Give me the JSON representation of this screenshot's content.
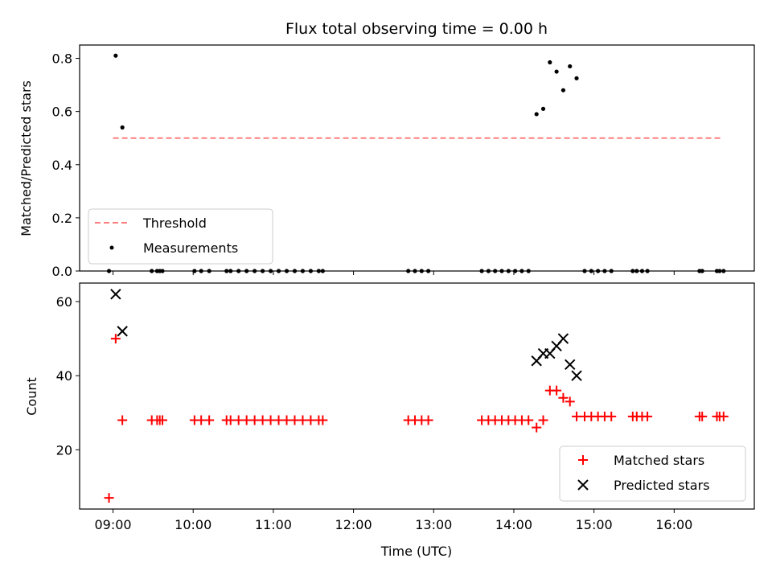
{
  "chart_data": [
    {
      "type": "scatter",
      "title": "Flux total observing time = 0.00 h",
      "xlabel": "",
      "ylabel": "Matched/Predicted stars",
      "xlim": [
        "08:35",
        "17:00"
      ],
      "ylim": [
        0,
        0.85
      ],
      "yticks": [
        "0.0",
        "0.2",
        "0.4",
        "0.6",
        "0.8"
      ],
      "legend_position": "lower-left",
      "threshold": {
        "name": "Threshold",
        "color": "#ff7f7f",
        "value": 0.5,
        "x_range": [
          "09:00",
          "16:35"
        ]
      },
      "series": [
        {
          "name": "Measurements",
          "color": "#000000",
          "points": [
            [
              "08:57",
              0
            ],
            [
              "09:02",
              0.81
            ],
            [
              "09:07",
              0.54
            ],
            [
              "09:29",
              0
            ],
            [
              "09:33",
              0
            ],
            [
              "09:35",
              0
            ],
            [
              "09:37",
              0
            ],
            [
              "10:01",
              0
            ],
            [
              "10:06",
              0
            ],
            [
              "10:12",
              0
            ],
            [
              "10:25",
              0
            ],
            [
              "10:28",
              0
            ],
            [
              "10:34",
              0
            ],
            [
              "10:40",
              0
            ],
            [
              "10:46",
              0
            ],
            [
              "10:52",
              0
            ],
            [
              "10:58",
              0
            ],
            [
              "11:04",
              0
            ],
            [
              "11:10",
              0
            ],
            [
              "11:16",
              0
            ],
            [
              "11:22",
              0
            ],
            [
              "11:28",
              0
            ],
            [
              "11:34",
              0
            ],
            [
              "11:37",
              0
            ],
            [
              "12:41",
              0
            ],
            [
              "12:46",
              0
            ],
            [
              "12:51",
              0
            ],
            [
              "12:56",
              0
            ],
            [
              "13:36",
              0
            ],
            [
              "13:41",
              0
            ],
            [
              "13:46",
              0
            ],
            [
              "13:51",
              0
            ],
            [
              "13:56",
              0
            ],
            [
              "14:01",
              0
            ],
            [
              "14:06",
              0
            ],
            [
              "14:11",
              0
            ],
            [
              "14:17",
              0.59
            ],
            [
              "14:22",
              0.61
            ],
            [
              "14:27",
              0.785
            ],
            [
              "14:32",
              0.75
            ],
            [
              "14:37",
              0.68
            ],
            [
              "14:42",
              0.77
            ],
            [
              "14:47",
              0.725
            ],
            [
              "14:53",
              0
            ],
            [
              "14:58",
              0
            ],
            [
              "15:03",
              0
            ],
            [
              "15:08",
              0
            ],
            [
              "15:13",
              0
            ],
            [
              "15:29",
              0
            ],
            [
              "15:32",
              0
            ],
            [
              "15:36",
              0
            ],
            [
              "15:40",
              0
            ],
            [
              "16:19",
              0
            ],
            [
              "16:21",
              0
            ],
            [
              "16:32",
              0
            ],
            [
              "16:34",
              0
            ],
            [
              "16:37",
              0
            ]
          ]
        }
      ]
    },
    {
      "type": "scatter",
      "title": "",
      "xlabel": "Time (UTC)",
      "ylabel": "Count",
      "xlim": [
        "08:35",
        "17:00"
      ],
      "ylim": [
        4,
        65
      ],
      "yticks": [
        "20",
        "40",
        "60"
      ],
      "xticks": [
        "09:00",
        "10:00",
        "11:00",
        "12:00",
        "13:00",
        "14:00",
        "15:00",
        "16:00"
      ],
      "legend_position": "lower-right",
      "series": [
        {
          "name": "Matched stars",
          "color": "#ff0000",
          "marker": "plus",
          "points": [
            [
              "08:57",
              7
            ],
            [
              "09:02",
              50
            ],
            [
              "09:07",
              28
            ],
            [
              "09:29",
              28
            ],
            [
              "09:33",
              28
            ],
            [
              "09:35",
              28
            ],
            [
              "09:37",
              28
            ],
            [
              "10:01",
              28
            ],
            [
              "10:06",
              28
            ],
            [
              "10:12",
              28
            ],
            [
              "10:25",
              28
            ],
            [
              "10:28",
              28
            ],
            [
              "10:34",
              28
            ],
            [
              "10:40",
              28
            ],
            [
              "10:46",
              28
            ],
            [
              "10:52",
              28
            ],
            [
              "10:58",
              28
            ],
            [
              "11:04",
              28
            ],
            [
              "11:10",
              28
            ],
            [
              "11:16",
              28
            ],
            [
              "11:22",
              28
            ],
            [
              "11:28",
              28
            ],
            [
              "11:34",
              28
            ],
            [
              "11:37",
              28
            ],
            [
              "12:41",
              28
            ],
            [
              "12:46",
              28
            ],
            [
              "12:51",
              28
            ],
            [
              "12:56",
              28
            ],
            [
              "13:36",
              28
            ],
            [
              "13:41",
              28
            ],
            [
              "13:46",
              28
            ],
            [
              "13:51",
              28
            ],
            [
              "13:56",
              28
            ],
            [
              "14:01",
              28
            ],
            [
              "14:06",
              28
            ],
            [
              "14:11",
              28
            ],
            [
              "14:17",
              26
            ],
            [
              "14:22",
              28
            ],
            [
              "14:27",
              36
            ],
            [
              "14:32",
              36
            ],
            [
              "14:37",
              34
            ],
            [
              "14:42",
              33
            ],
            [
              "14:47",
              29
            ],
            [
              "14:53",
              29
            ],
            [
              "14:58",
              29
            ],
            [
              "15:03",
              29
            ],
            [
              "15:08",
              29
            ],
            [
              "15:13",
              29
            ],
            [
              "15:29",
              29
            ],
            [
              "15:32",
              29
            ],
            [
              "15:36",
              29
            ],
            [
              "15:40",
              29
            ],
            [
              "16:19",
              29
            ],
            [
              "16:21",
              29
            ],
            [
              "16:32",
              29
            ],
            [
              "16:34",
              29
            ],
            [
              "16:37",
              29
            ]
          ]
        },
        {
          "name": "Predicted stars",
          "color": "#000000",
          "marker": "x",
          "points": [
            [
              "09:02",
              62
            ],
            [
              "09:07",
              52
            ],
            [
              "14:17",
              44
            ],
            [
              "14:22",
              46
            ],
            [
              "14:27",
              46
            ],
            [
              "14:32",
              48
            ],
            [
              "14:37",
              50
            ],
            [
              "14:42",
              43
            ],
            [
              "14:47",
              40
            ]
          ]
        }
      ]
    }
  ]
}
